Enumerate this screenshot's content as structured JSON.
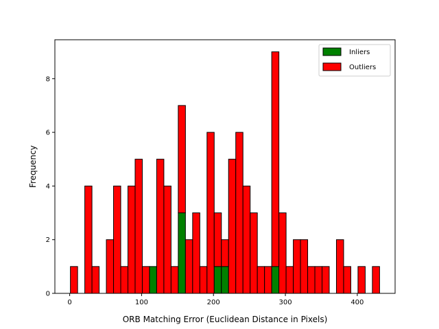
{
  "chart_data": {
    "type": "bar",
    "subtype": "stacked-histogram",
    "title": "",
    "xlabel": "ORB Matching Error (Euclidean Distance in Pixels)",
    "ylabel": "Frequency",
    "xlim": [
      -20.6,
      452.6
    ],
    "ylim": [
      0,
      9.45
    ],
    "xticks": [
      0,
      100,
      200,
      300,
      400
    ],
    "yticks": [
      0,
      2,
      4,
      6,
      8
    ],
    "bin_start": 1,
    "bin_width": 10,
    "grid": false,
    "legend_position": "top-right",
    "series": [
      {
        "name": "Inliers",
        "color": "#008000",
        "values": [
          0,
          0,
          0,
          0,
          0,
          0,
          0,
          0,
          0,
          0,
          0,
          1,
          0,
          0,
          0,
          3,
          0,
          0,
          0,
          0,
          1,
          1,
          0,
          0,
          0,
          0,
          0,
          0,
          1,
          0,
          0,
          0,
          0,
          0,
          0,
          0,
          0,
          0,
          0,
          0,
          0,
          0,
          0
        ]
      },
      {
        "name": "Outliers",
        "color": "#ff0000",
        "values": [
          1,
          0,
          4,
          1,
          0,
          2,
          4,
          1,
          4,
          5,
          1,
          0,
          5,
          4,
          1,
          4,
          2,
          3,
          1,
          6,
          2,
          1,
          5,
          6,
          4,
          3,
          1,
          1,
          8,
          3,
          1,
          2,
          2,
          1,
          1,
          1,
          0,
          2,
          1,
          0,
          1,
          0,
          1
        ]
      }
    ]
  }
}
